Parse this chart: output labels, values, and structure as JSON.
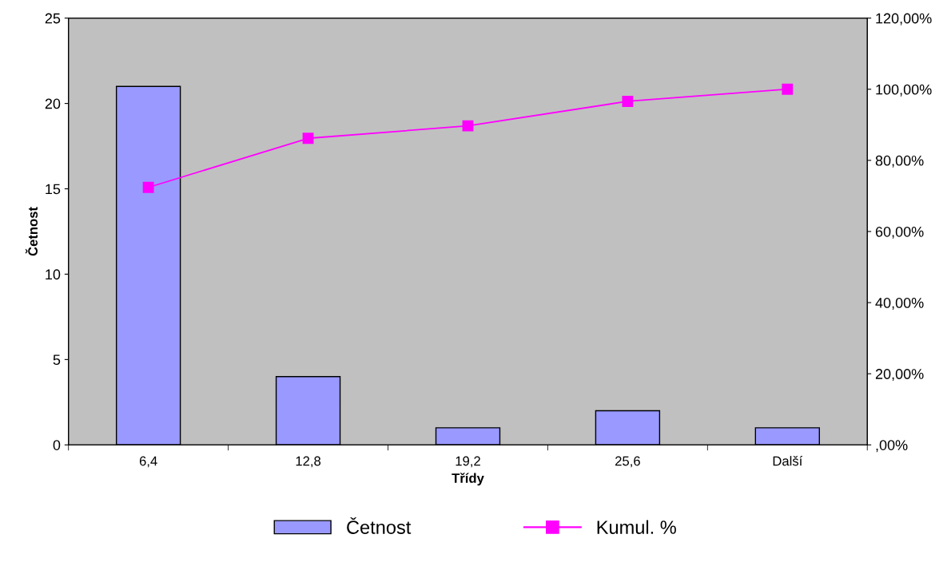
{
  "chart_data": {
    "type": "bar",
    "xlabel": "Třídy",
    "ylabel": "Četnost",
    "categories": [
      "6,4",
      "12,8",
      "19,2",
      "25,6",
      "Další"
    ],
    "series": [
      {
        "name": "Četnost",
        "color": "#9999ff",
        "values": [
          21,
          4,
          1,
          2,
          1
        ]
      },
      {
        "name": "Kumul. %",
        "type": "line",
        "axis": "y2",
        "color": "#ff00ff",
        "marker": "square",
        "values": [
          72.4,
          86.2,
          89.7,
          96.6,
          100
        ]
      }
    ],
    "ylim": [
      0,
      25
    ],
    "yticks": [
      0,
      5,
      10,
      15,
      20,
      25
    ],
    "y2lim": [
      0,
      120
    ],
    "y2ticks": [
      {
        "value": 0,
        "label": ",00%"
      },
      {
        "value": 20,
        "label": "20,00%"
      },
      {
        "value": 40,
        "label": "40,00%"
      },
      {
        "value": 60,
        "label": "60,00%"
      },
      {
        "value": 80,
        "label": "80,00%"
      },
      {
        "value": 100,
        "label": "100,00%"
      },
      {
        "value": 120,
        "label": "120,00%"
      }
    ],
    "grid": false,
    "legend": "bottom"
  }
}
